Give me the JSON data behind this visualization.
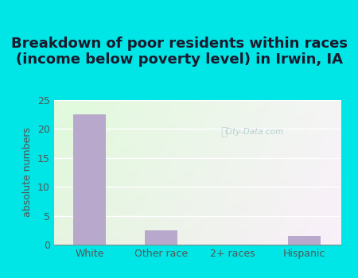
{
  "title": "Breakdown of poor residents within races\n(income below poverty level) in Irwin, IA",
  "categories": [
    "White",
    "Other race",
    "2+ races",
    "Hispanic"
  ],
  "values": [
    22.5,
    2.5,
    0,
    1.5
  ],
  "bar_color": "#b8a8cc",
  "ylabel": "absolute numbers",
  "ylim": [
    0,
    25
  ],
  "yticks": [
    0,
    5,
    10,
    15,
    20,
    25
  ],
  "bg_outer": "#00e5e5",
  "title_fontsize": 13,
  "axis_label_fontsize": 9,
  "tick_fontsize": 9,
  "watermark": "City-Data.com",
  "title_color": "#1a1a2e",
  "tick_color": "#555555",
  "grid_color": "#ffffff"
}
